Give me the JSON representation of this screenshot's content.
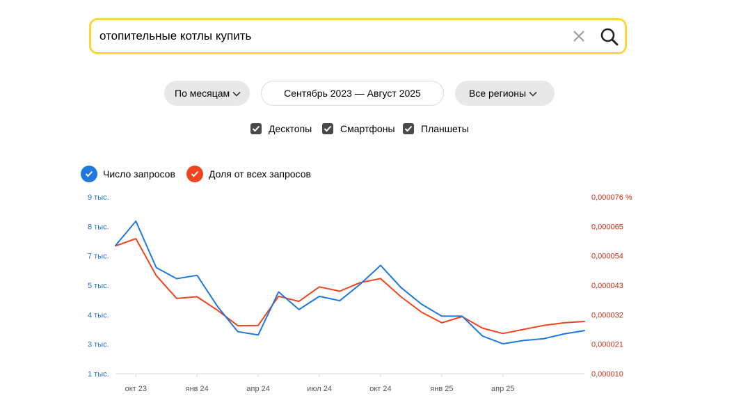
{
  "search": {
    "query": "отопительные котлы купить"
  },
  "filters": {
    "period_label": "По месяцам",
    "date_range": "Сентябрь 2023 — Август 2025",
    "region_label": "Все регионы"
  },
  "devices": [
    {
      "label": "Десктопы",
      "checked": true
    },
    {
      "label": "Смартфоны",
      "checked": true
    },
    {
      "label": "Планшеты",
      "checked": true
    }
  ],
  "legend": [
    {
      "label": "Число запросов",
      "color": "#1f77e0"
    },
    {
      "label": "Доля от всех запросов",
      "color": "#f0441f"
    }
  ],
  "colors": {
    "accent_yellow": "#fdd73a",
    "series_count": "#1f77e0",
    "series_share": "#f0441f",
    "axis_left_text": "#1f6fd1",
    "axis_right_text": "#c62f12"
  },
  "chart_data": {
    "type": "line",
    "x": [
      "2023-09",
      "2023-10",
      "2023-11",
      "2023-12",
      "2024-01",
      "2024-02",
      "2024-03",
      "2024-04",
      "2024-05",
      "2024-06",
      "2024-07",
      "2024-08",
      "2024-09",
      "2024-10",
      "2024-11",
      "2024-12",
      "2025-01",
      "2025-02",
      "2025-03",
      "2025-04",
      "2025-05",
      "2025-06",
      "2025-07",
      "2025-08"
    ],
    "x_tick_labels": [
      {
        "x": "2023-10",
        "label": "окт 23"
      },
      {
        "x": "2024-01",
        "label": "янв 24"
      },
      {
        "x": "2024-04",
        "label": "апр 24"
      },
      {
        "x": "2024-07",
        "label": "июл 24"
      },
      {
        "x": "2024-10",
        "label": "окт 24"
      },
      {
        "x": "2025-01",
        "label": "янв 25"
      },
      {
        "x": "2025-04",
        "label": "апр 25"
      }
    ],
    "series": [
      {
        "name": "Число запросов",
        "axis": "left",
        "values": [
          6800,
          7900,
          5800,
          5300,
          5450,
          4050,
          2900,
          2750,
          4700,
          3900,
          4500,
          4300,
          5050,
          5900,
          4900,
          4150,
          3600,
          3600,
          2700,
          2350,
          2500,
          2580,
          2800,
          2950
        ]
      },
      {
        "name": "Доля от всех запросов",
        "axis": "right",
        "values": [
          5.77e-05,
          6.04e-05,
          4.66e-05,
          3.81e-05,
          3.87e-05,
          3.37e-05,
          2.79e-05,
          2.8e-05,
          3.89e-05,
          3.7e-05,
          4.24e-05,
          4.08e-05,
          4.4e-05,
          4.55e-05,
          3.87e-05,
          3.3e-05,
          2.9e-05,
          3.13e-05,
          2.7e-05,
          2.5e-05,
          2.65e-05,
          2.8e-05,
          2.9e-05,
          2.95e-05
        ]
      }
    ],
    "y_left": {
      "ylim": [
        1000,
        9000
      ],
      "tick_labels": [
        "9 тыс.",
        "8 тыс.",
        "7 тыс.",
        "5 тыс.",
        "4 тыс.",
        "3 тыс.",
        "1 тыс."
      ]
    },
    "y_right": {
      "ylim": [
        1e-05,
        7.6e-05
      ],
      "tick_labels": [
        "0,000076 %",
        "0,000065",
        "0,000054",
        "0,000043",
        "0,000032",
        "0,000021",
        "0,000010"
      ]
    },
    "grid": false
  }
}
